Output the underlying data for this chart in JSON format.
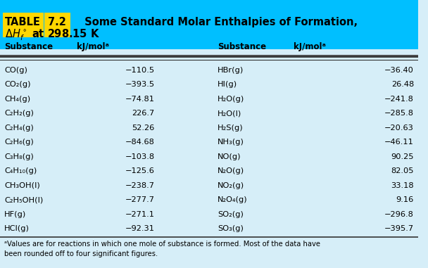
{
  "title_line1": "TABLE 7.2   Some Standard Molar Enthalpies of Formation,",
  "title_line2": "ΔH°ⁱ at 298.15 K",
  "header_bg": "#00BFFF",
  "table_bg": "#D6EEF8",
  "col_headers": [
    "Substance",
    "kJ/molᵃ",
    "Substance",
    "kJ/molᵃ"
  ],
  "left_substances": [
    "CO(g)",
    "CO₂(g)",
    "CH₄(g)",
    "C₂H₂(g)",
    "C₂H₄(g)",
    "C₂H₆(g)",
    "C₃H₈(g)",
    "C₄H₁₀(g)",
    "CH₃OH(l)",
    "C₂H₅OH(l)",
    "HF(g)",
    "HCl(g)"
  ],
  "left_values": [
    "−110.5",
    "−393.5",
    "−74.81",
    "226.7",
    "52.26",
    "−84.68",
    "−103.8",
    "−125.6",
    "−238.7",
    "−277.7",
    "−271.1",
    "−92.31"
  ],
  "right_substances": [
    "HBr(g)",
    "HI(g)",
    "H₂O(g)",
    "H₂O(l)",
    "H₂S(g)",
    "NH₃(g)",
    "NO(g)",
    "N₂O(g)",
    "NO₂(g)",
    "N₂O₄(g)",
    "SO₂(g)",
    "SO₃(g)"
  ],
  "right_values": [
    "−36.40",
    "26.48",
    "−241.8",
    "−285.8",
    "−20.63",
    "−46.11",
    "90.25",
    "82.05",
    "33.18",
    "9.16",
    "−296.8",
    "−395.7"
  ],
  "footnote": "ᵃValues are for reactions in which one mole of substance is formed. Most of the data have\nbeen rounded off to four significant figures.",
  "table_label_highlight": "#FFD700",
  "table_label_text": "TABLE",
  "table_number_highlight": "#FFD700",
  "table_number_text": "7.2"
}
